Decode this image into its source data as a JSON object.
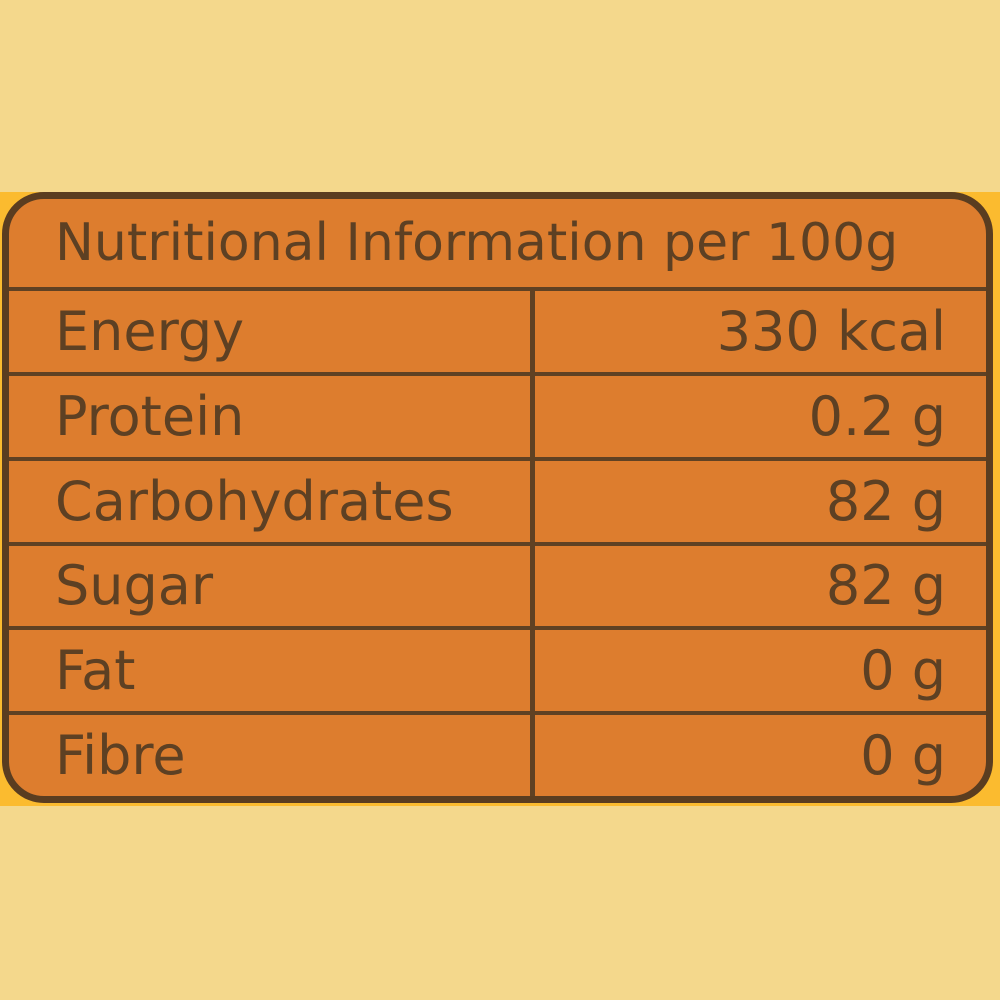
{
  "table": {
    "header": "Nutritional Information per 100g",
    "rows": [
      {
        "label": "Energy",
        "value": "330 kcal"
      },
      {
        "label": "Protein",
        "value": "0.2 g"
      },
      {
        "label": "Carbohydrates",
        "value": "82 g"
      },
      {
        "label": "Sugar",
        "value": "82 g"
      },
      {
        "label": "Fat",
        "value": "0 g"
      },
      {
        "label": "Fibre",
        "value": "0 g"
      }
    ]
  },
  "colors": {
    "page_background": "#f4d88c",
    "label_band": "#fbbb2f",
    "table_background": "#dd7d2e",
    "border_and_text": "#5d4023"
  }
}
